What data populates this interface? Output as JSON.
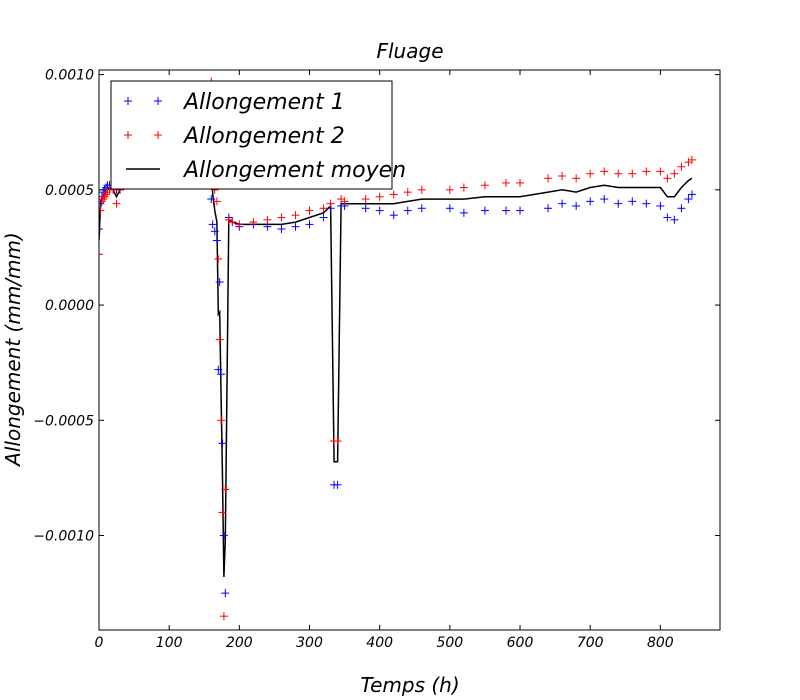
{
  "chart_data": {
    "type": "scatter",
    "title": "Fluage",
    "xlabel": "Temps (h)",
    "ylabel": "Allongement (mm/mm)",
    "xlim": [
      0,
      885
    ],
    "ylim": [
      -0.00141,
      0.00102
    ],
    "xticks": [
      0,
      100,
      200,
      300,
      400,
      500,
      600,
      700,
      800
    ],
    "xtick_labels": [
      "0",
      "100",
      "200",
      "300",
      "400",
      "500",
      "600",
      "700",
      "800"
    ],
    "yticks": [
      0.001,
      0.0005,
      0.0,
      -0.0005,
      -0.001
    ],
    "ytick_labels": [
      "0.0010",
      "0.0005",
      "0.0000",
      "−0.0005",
      "−0.0010"
    ],
    "grid": false,
    "legend_position": "top-left",
    "series": [
      {
        "name": "Allongement 1",
        "color": "#0000ff",
        "marker": "plus",
        "x": [
          0,
          2,
          4,
          6,
          8,
          10,
          12,
          15,
          20,
          25,
          30,
          160,
          162,
          165,
          168,
          170,
          172,
          174,
          176,
          178,
          180,
          185,
          190,
          200,
          220,
          240,
          260,
          280,
          300,
          320,
          330,
          335,
          340,
          345,
          350,
          380,
          400,
          420,
          440,
          460,
          500,
          520,
          550,
          580,
          600,
          640,
          660,
          680,
          700,
          720,
          740,
          760,
          780,
          800,
          810,
          820,
          830,
          840,
          845
        ],
        "y": [
          0.00033,
          0.00044,
          0.00047,
          0.00049,
          0.0005,
          0.00051,
          0.00052,
          0.00052,
          0.00051,
          0.0005,
          0.0005,
          0.00046,
          0.00035,
          0.00032,
          0.00028,
          -0.00028,
          0.0001,
          -0.0003,
          -0.0006,
          -0.001,
          -0.00125,
          0.00038,
          0.00036,
          0.00034,
          0.00035,
          0.00034,
          0.00033,
          0.00034,
          0.00035,
          0.00038,
          0.00042,
          -0.00078,
          -0.00078,
          0.00043,
          0.00043,
          0.00042,
          0.00041,
          0.00039,
          0.00041,
          0.00042,
          0.00042,
          0.0004,
          0.00041,
          0.00041,
          0.00041,
          0.00042,
          0.00044,
          0.00043,
          0.00045,
          0.00046,
          0.00044,
          0.00045,
          0.00044,
          0.00043,
          0.00038,
          0.00037,
          0.00042,
          0.00046,
          0.00048
        ]
      },
      {
        "name": "Allongement 2",
        "color": "#ff0000",
        "marker": "plus",
        "x": [
          0,
          2,
          4,
          6,
          8,
          10,
          12,
          15,
          20,
          25,
          30,
          160,
          162,
          165,
          168,
          170,
          172,
          174,
          176,
          178,
          180,
          185,
          190,
          200,
          220,
          240,
          260,
          280,
          300,
          320,
          330,
          335,
          340,
          345,
          350,
          380,
          400,
          420,
          440,
          460,
          500,
          520,
          550,
          580,
          600,
          640,
          660,
          680,
          700,
          720,
          740,
          760,
          780,
          800,
          810,
          820,
          830,
          840,
          845
        ],
        "y": [
          0.00022,
          0.00041,
          0.00045,
          0.00046,
          0.00047,
          0.00048,
          0.00049,
          0.0005,
          0.0005,
          0.00044,
          0.0005,
          0.00097,
          0.0006,
          0.0005,
          0.00045,
          0.0002,
          -0.00015,
          -0.0005,
          -0.0009,
          -0.00135,
          -0.0008,
          0.00037,
          0.00036,
          0.00035,
          0.00036,
          0.00037,
          0.00038,
          0.00039,
          0.00041,
          0.00042,
          0.00044,
          -0.00059,
          -0.00059,
          0.00046,
          0.00045,
          0.00046,
          0.00047,
          0.00048,
          0.00049,
          0.0005,
          0.0005,
          0.00051,
          0.00052,
          0.00053,
          0.00053,
          0.00055,
          0.00056,
          0.00055,
          0.00057,
          0.00058,
          0.00057,
          0.00057,
          0.00058,
          0.00058,
          0.00055,
          0.00057,
          0.0006,
          0.00062,
          0.00063
        ]
      },
      {
        "name": "Allongement moyen",
        "color": "#000000",
        "marker": "line",
        "x": [
          0,
          2,
          4,
          6,
          8,
          10,
          12,
          15,
          20,
          25,
          30,
          160,
          162,
          165,
          168,
          170,
          172,
          174,
          176,
          178,
          180,
          185,
          190,
          200,
          220,
          240,
          260,
          280,
          300,
          320,
          330,
          335,
          340,
          345,
          350,
          380,
          400,
          420,
          440,
          460,
          500,
          520,
          550,
          580,
          600,
          640,
          660,
          680,
          700,
          720,
          740,
          760,
          780,
          800,
          810,
          820,
          830,
          840,
          845
        ],
        "y": [
          0.00028,
          0.00042,
          0.00046,
          0.00047,
          0.00048,
          0.0005,
          0.0005,
          0.00051,
          0.0005,
          0.00047,
          0.0005,
          0.0007,
          0.00048,
          0.00041,
          0.00036,
          -4e-05,
          -3e-05,
          -0.0004,
          -0.00075,
          -0.00118,
          -0.00102,
          0.00037,
          0.00036,
          0.00035,
          0.00035,
          0.00035,
          0.00035,
          0.00036,
          0.00038,
          0.0004,
          0.00043,
          -0.00068,
          -0.00068,
          0.00044,
          0.00044,
          0.00044,
          0.00044,
          0.00044,
          0.00045,
          0.00046,
          0.00046,
          0.00046,
          0.00047,
          0.00047,
          0.00047,
          0.00049,
          0.0005,
          0.00049,
          0.00051,
          0.00052,
          0.00051,
          0.00051,
          0.00051,
          0.00051,
          0.00047,
          0.00047,
          0.00051,
          0.00054,
          0.00055
        ]
      }
    ]
  }
}
